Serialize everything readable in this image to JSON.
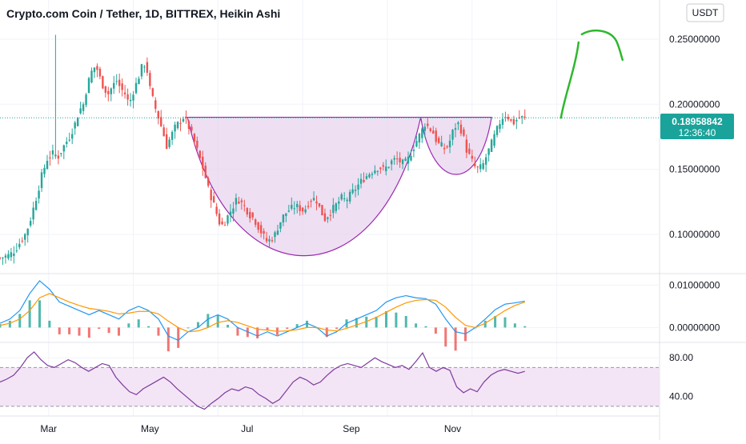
{
  "header": {
    "title": "Crypto.com Coin / Tether, 1D, BITTREX, Heikin Ashi"
  },
  "currency_button": {
    "label": "USDT"
  },
  "price_tag": {
    "price": "0.18958842",
    "countdown": "12:36:40"
  },
  "colors": {
    "up": "#26a69a",
    "down": "#ef5350",
    "pattern_fill": "#e8d4ef",
    "pattern_line": "#9c27b0",
    "arrow": "#2eb82e",
    "macd_line": "#2196f3",
    "signal_line": "#ff9800",
    "rsi_line": "#7e3a9e",
    "rsi_band": "#f3e5f5",
    "price_line": "#1aa39a"
  },
  "chart_data": [
    {
      "type": "candlestick",
      "title": "Crypto.com Coin / Tether, 1D, BITTREX, Heikin Ashi",
      "x_ticks": [
        "Mar",
        "May",
        "Jul",
        "Sep",
        "Nov"
      ],
      "ylim": [
        0.07,
        0.28
      ],
      "y_ticks": [
        {
          "value": 0.25,
          "label": "0.25000000"
        },
        {
          "value": 0.2,
          "label": "0.20000000"
        },
        {
          "value": 0.15,
          "label": "0.15000000"
        },
        {
          "value": 0.1,
          "label": "0.10000000"
        }
      ],
      "current_price": 0.18958842,
      "close_path": [
        [
          0,
          0.082
        ],
        [
          3,
          0.083
        ],
        [
          6,
          0.084
        ],
        [
          9,
          0.086
        ],
        [
          12,
          0.09
        ],
        [
          15,
          0.095
        ],
        [
          18,
          0.1
        ],
        [
          21,
          0.108
        ],
        [
          24,
          0.12
        ],
        [
          27,
          0.132
        ],
        [
          30,
          0.145
        ],
        [
          34,
          0.158
        ],
        [
          38,
          0.162
        ],
        [
          42,
          0.16
        ],
        [
          46,
          0.168
        ],
        [
          50,
          0.175
        ],
        [
          54,
          0.185
        ],
        [
          57,
          0.195
        ],
        [
          60,
          0.2
        ],
        [
          63,
          0.215
        ],
        [
          66,
          0.225
        ],
        [
          69,
          0.23
        ],
        [
          72,
          0.22
        ],
        [
          75,
          0.212
        ],
        [
          78,
          0.208
        ],
        [
          81,
          0.214
        ],
        [
          84,
          0.218
        ],
        [
          87,
          0.212
        ],
        [
          90,
          0.208
        ],
        [
          93,
          0.2
        ],
        [
          96,
          0.21
        ],
        [
          99,
          0.218
        ],
        [
          102,
          0.228
        ],
        [
          105,
          0.232
        ],
        [
          108,
          0.212
        ],
        [
          111,
          0.2
        ],
        [
          114,
          0.19
        ],
        [
          117,
          0.18
        ],
        [
          120,
          0.168
        ],
        [
          123,
          0.175
        ],
        [
          126,
          0.182
        ],
        [
          129,
          0.186
        ],
        [
          132,
          0.19
        ],
        [
          135,
          0.185
        ],
        [
          138,
          0.177
        ],
        [
          141,
          0.168
        ],
        [
          144,
          0.158
        ],
        [
          147,
          0.148
        ],
        [
          150,
          0.135
        ],
        [
          153,
          0.126
        ],
        [
          156,
          0.116
        ],
        [
          159,
          0.106
        ],
        [
          162,
          0.11
        ],
        [
          165,
          0.116
        ],
        [
          168,
          0.122
        ],
        [
          171,
          0.128
        ],
        [
          174,
          0.124
        ],
        [
          177,
          0.12
        ],
        [
          180,
          0.115
        ],
        [
          183,
          0.112
        ],
        [
          186,
          0.106
        ],
        [
          189,
          0.1
        ],
        [
          192,
          0.095
        ],
        [
          195,
          0.096
        ],
        [
          198,
          0.1
        ],
        [
          201,
          0.108
        ],
        [
          204,
          0.114
        ],
        [
          207,
          0.118
        ],
        [
          210,
          0.12
        ],
        [
          213,
          0.122
        ],
        [
          216,
          0.12
        ],
        [
          219,
          0.118
        ],
        [
          222,
          0.124
        ],
        [
          225,
          0.128
        ],
        [
          228,
          0.126
        ],
        [
          231,
          0.118
        ],
        [
          234,
          0.112
        ],
        [
          237,
          0.116
        ],
        [
          240,
          0.12
        ],
        [
          243,
          0.124
        ],
        [
          246,
          0.128
        ],
        [
          249,
          0.126
        ],
        [
          252,
          0.13
        ],
        [
          255,
          0.134
        ],
        [
          258,
          0.138
        ],
        [
          261,
          0.142
        ],
        [
          264,
          0.145
        ],
        [
          267,
          0.148
        ],
        [
          270,
          0.15
        ],
        [
          273,
          0.152
        ],
        [
          276,
          0.15
        ],
        [
          279,
          0.152
        ],
        [
          282,
          0.156
        ],
        [
          285,
          0.158
        ],
        [
          288,
          0.156
        ],
        [
          291,
          0.154
        ],
        [
          294,
          0.158
        ],
        [
          297,
          0.165
        ],
        [
          300,
          0.172
        ],
        [
          303,
          0.178
        ],
        [
          306,
          0.185
        ],
        [
          309,
          0.182
        ],
        [
          312,
          0.178
        ],
        [
          315,
          0.17
        ],
        [
          318,
          0.168
        ],
        [
          321,
          0.165
        ],
        [
          324,
          0.172
        ],
        [
          327,
          0.182
        ],
        [
          330,
          0.185
        ],
        [
          333,
          0.178
        ],
        [
          336,
          0.165
        ],
        [
          339,
          0.158
        ],
        [
          342,
          0.152
        ],
        [
          345,
          0.15
        ],
        [
          348,
          0.154
        ],
        [
          351,
          0.162
        ],
        [
          354,
          0.17
        ],
        [
          357,
          0.178
        ],
        [
          360,
          0.186
        ],
        [
          363,
          0.192
        ],
        [
          366,
          0.19
        ],
        [
          369,
          0.185
        ],
        [
          372,
          0.188
        ],
        [
          375,
          0.19
        ],
        [
          378,
          0.189
        ]
      ],
      "pattern": {
        "rim": 0.19,
        "cup_bottom": 0.081,
        "handle_bottom": 0.145,
        "cup_days": [
          135,
          303
        ],
        "handle_days": [
          303,
          354
        ]
      },
      "projection_target": 0.25
    },
    {
      "type": "macd",
      "ylim": [
        -0.0035,
        0.0125
      ],
      "y_ticks": [
        {
          "value": 0.01,
          "label": "0.01000000"
        },
        {
          "value": 0.0,
          "label": "0.00000000"
        }
      ],
      "series": [
        {
          "name": "",
          "role": "macd",
          "values": [
            0.001,
            0.002,
            0.004,
            0.008,
            0.011,
            0.009,
            0.006,
            0.005,
            0.004,
            0.003,
            0.004,
            0.003,
            0.002,
            0.004,
            0.005,
            0.004,
            0.002,
            -0.002,
            -0.003,
            -0.001,
            0.0,
            0.002,
            0.003,
            0.002,
            0.0,
            -0.001,
            -0.002,
            -0.001,
            -0.002,
            -0.001,
            0.0,
            0.001,
            0.0,
            -0.002,
            -0.001,
            0.001,
            0.002,
            0.003,
            0.004,
            0.006,
            0.007,
            0.0075,
            0.007,
            0.0068,
            0.0055,
            0.002,
            -0.001,
            -0.0015,
            0.0,
            0.002,
            0.0042,
            0.0055,
            0.0058,
            0.0062
          ]
        },
        {
          "name": "",
          "role": "signal",
          "values": [
            0.0005,
            0.001,
            0.002,
            0.004,
            0.007,
            0.008,
            0.007,
            0.006,
            0.0052,
            0.0045,
            0.0042,
            0.0038,
            0.0032,
            0.0034,
            0.0038,
            0.0038,
            0.0032,
            0.0015,
            0.0,
            -0.001,
            -0.0008,
            0.0,
            0.0012,
            0.0016,
            0.0012,
            0.0004,
            -0.0004,
            -0.0006,
            -0.0009,
            -0.0008,
            -0.0005,
            0.0,
            0.0,
            -0.0006,
            -0.0008,
            -0.0002,
            0.0006,
            0.0014,
            0.0024,
            0.0036,
            0.0048,
            0.0058,
            0.0064,
            0.0066,
            0.0064,
            0.0048,
            0.0024,
            0.0005,
            0.0,
            0.001,
            0.0025,
            0.004,
            0.0052,
            0.006
          ]
        }
      ]
    },
    {
      "type": "line",
      "ylim": [
        20,
        95
      ],
      "band": [
        30,
        70
      ],
      "y_ticks": [
        {
          "value": 80,
          "label": "80.00"
        },
        {
          "value": 40,
          "label": "40.00"
        }
      ],
      "series": [
        {
          "name": "",
          "values": [
            55,
            58,
            62,
            70,
            80,
            86,
            78,
            72,
            70,
            74,
            78,
            75,
            70,
            66,
            70,
            74,
            72,
            60,
            52,
            45,
            42,
            48,
            52,
            56,
            60,
            55,
            48,
            42,
            36,
            30,
            27,
            33,
            38,
            44,
            48,
            46,
            50,
            48,
            42,
            38,
            33,
            37,
            46,
            55,
            60,
            57,
            52,
            55,
            62,
            68,
            72,
            74,
            72,
            70,
            75,
            80,
            76,
            73,
            70,
            72,
            68,
            76,
            85,
            70,
            66,
            70,
            67,
            50,
            44,
            48,
            45,
            55,
            62,
            66,
            68,
            66,
            64,
            66
          ]
        }
      ]
    }
  ]
}
